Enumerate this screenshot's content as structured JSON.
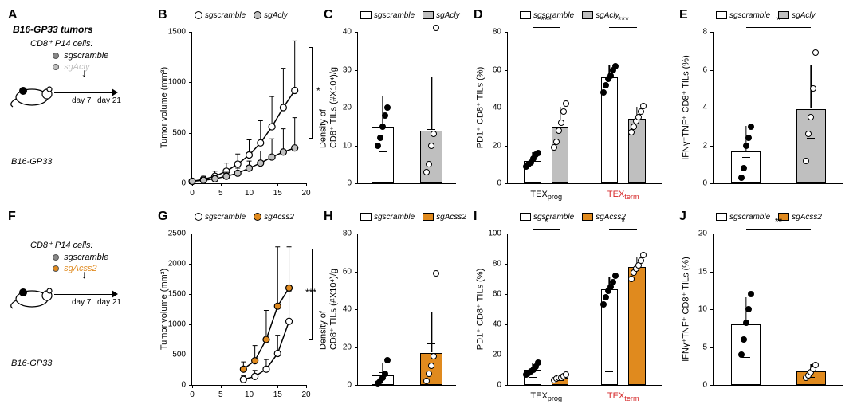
{
  "colors": {
    "black": "#000000",
    "white": "#ffffff",
    "grid": "#e0e0e0",
    "acly": "#bfbfbf",
    "acss2": "#e08a1e",
    "red": "#d62728"
  },
  "panelA": {
    "letter": "A",
    "title": "B16-GP33 tumors",
    "subheader": "CD8⁺ P14 cells:",
    "conds": [
      {
        "label": "sgscramble",
        "color": "#888888"
      },
      {
        "label": "sgAcly",
        "color": "#bfbfbf"
      }
    ],
    "model": "B16-GP33",
    "day7": "day 7",
    "day21": "day 21"
  },
  "panelB": {
    "letter": "B",
    "type": "line",
    "y_title": "Tumor volume (mm³)",
    "xlim": [
      0,
      20
    ],
    "xticks": [
      0,
      5,
      10,
      15,
      20
    ],
    "ylim": [
      0,
      1500
    ],
    "yticks": [
      0,
      500,
      1000,
      1500
    ],
    "legend": [
      {
        "label": "sgscramble",
        "marker_fill": "#ffffff"
      },
      {
        "label": "sgAcly",
        "marker_fill": "#bfbfbf"
      }
    ],
    "series": [
      {
        "name": "sgscramble",
        "color": "#000000",
        "fill": "#ffffff",
        "x": [
          0,
          2,
          4,
          6,
          8,
          10,
          12,
          14,
          16,
          18
        ],
        "y": [
          20,
          40,
          70,
          120,
          190,
          280,
          400,
          560,
          750,
          920
        ],
        "err": [
          0,
          30,
          50,
          80,
          100,
          150,
          220,
          300,
          390,
          490
        ]
      },
      {
        "name": "sgAcly",
        "color": "#000000",
        "fill": "#bfbfbf",
        "x": [
          0,
          2,
          4,
          6,
          8,
          10,
          12,
          14,
          16,
          18
        ],
        "y": [
          20,
          30,
          45,
          70,
          100,
          150,
          200,
          260,
          310,
          350
        ],
        "err": [
          0,
          20,
          30,
          40,
          50,
          70,
          120,
          180,
          230,
          300
        ]
      }
    ],
    "sig": "*"
  },
  "panelC": {
    "letter": "C",
    "type": "bar",
    "y_title": "Density of\nCD8⁺ TILs (#X10⁴)/g",
    "ylim": [
      0,
      40
    ],
    "yticks": [
      0,
      10,
      20,
      30,
      40
    ],
    "legend": [
      {
        "label": "sgscramble",
        "fill": "#ffffff"
      },
      {
        "label": "sgAcly",
        "fill": "#bfbfbf"
      }
    ],
    "bars": [
      {
        "group": "sgscramble",
        "fill": "#ffffff",
        "mean": 15,
        "err": 8,
        "points": [
          10,
          12,
          15,
          18,
          20
        ],
        "pt_fill": "#000000"
      },
      {
        "group": "sgAcly",
        "fill": "#bfbfbf",
        "mean": 14,
        "err": 14,
        "points": [
          3,
          5,
          10,
          13,
          41
        ],
        "pt_fill": "#ffffff"
      }
    ]
  },
  "panelD": {
    "letter": "D",
    "type": "grouped-bar",
    "y_title": "PD1⁺ CD8⁺ TILs (%)",
    "ylim": [
      0,
      80
    ],
    "yticks": [
      0,
      20,
      40,
      60,
      80
    ],
    "legend": [
      {
        "label": "sgscramble",
        "fill": "#ffffff"
      },
      {
        "label": "sgAcly",
        "fill": "#bfbfbf"
      }
    ],
    "groups": [
      {
        "name": "TEX",
        "sub": "prog",
        "color": "#000000",
        "bars": [
          {
            "fill": "#ffffff",
            "mean": 12,
            "err": 4,
            "points": [
              9,
              10,
              11,
              13,
              15,
              16
            ],
            "pt_fill": "#000000"
          },
          {
            "fill": "#bfbfbf",
            "mean": 30,
            "err": 10,
            "points": [
              19,
              22,
              28,
              32,
              38,
              42
            ],
            "pt_fill": "#ffffff"
          }
        ],
        "sig": "***"
      },
      {
        "name": "TEX",
        "sub": "term",
        "color": "#d62728",
        "bars": [
          {
            "fill": "#ffffff",
            "mean": 56,
            "err": 6,
            "points": [
              48,
              52,
              55,
              57,
              60,
              62
            ],
            "pt_fill": "#000000"
          },
          {
            "fill": "#bfbfbf",
            "mean": 34,
            "err": 6,
            "points": [
              27,
              30,
              33,
              35,
              38,
              41
            ],
            "pt_fill": "#ffffff"
          }
        ],
        "sig": "***"
      }
    ]
  },
  "panelE": {
    "letter": "E",
    "type": "bar",
    "y_title": "IFNγ⁺TNF⁺ CD8⁺ TILs (%)",
    "ylim": [
      0,
      8
    ],
    "yticks": [
      0,
      2,
      4,
      6,
      8
    ],
    "legend": [
      {
        "label": "sgscramble",
        "fill": "#ffffff"
      },
      {
        "label": "sgAcly",
        "fill": "#bfbfbf"
      }
    ],
    "bars": [
      {
        "fill": "#ffffff",
        "mean": 1.7,
        "err": 1.3,
        "points": [
          0.3,
          0.8,
          2.0,
          2.4,
          3.0
        ],
        "pt_fill": "#000000"
      },
      {
        "fill": "#bfbfbf",
        "mean": 3.9,
        "err": 2.3,
        "points": [
          1.2,
          2.6,
          3.5,
          5.0,
          6.9
        ],
        "pt_fill": "#ffffff"
      }
    ],
    "sig": "*"
  },
  "panelF": {
    "letter": "F",
    "subheader": "CD8⁺ P14 cells:",
    "conds": [
      {
        "label": "sgscramble",
        "color": "#888888"
      },
      {
        "label": "sgAcss2",
        "color": "#e08a1e"
      }
    ],
    "model": "B16-GP33",
    "day7": "day 7",
    "day21": "day 21"
  },
  "panelG": {
    "letter": "G",
    "type": "line",
    "y_title": "Tumor volume (mm³)",
    "xlim": [
      0,
      20
    ],
    "xticks": [
      0,
      5,
      10,
      15,
      20
    ],
    "ylim": [
      0,
      2500
    ],
    "yticks": [
      0,
      500,
      1000,
      1500,
      2000,
      2500
    ],
    "legend": [
      {
        "label": "sgscramble",
        "marker_fill": "#ffffff"
      },
      {
        "label": "sgAcss2",
        "marker_fill": "#e08a1e"
      }
    ],
    "series": [
      {
        "name": "sgscramble",
        "color": "#000000",
        "fill": "#ffffff",
        "x": [
          9,
          11,
          13,
          15,
          17
        ],
        "y": [
          90,
          140,
          260,
          520,
          1050
        ],
        "err": [
          60,
          100,
          160,
          300,
          500
        ]
      },
      {
        "name": "sgAcss2",
        "color": "#000000",
        "fill": "#e08a1e",
        "x": [
          9,
          11,
          13,
          15,
          17
        ],
        "y": [
          260,
          400,
          750,
          1300,
          1600
        ],
        "err": [
          120,
          250,
          480,
          980,
          680
        ]
      }
    ],
    "sig": "***"
  },
  "panelH": {
    "letter": "H",
    "type": "bar",
    "y_title": "Density of\nCD8⁺ TILs (#X10⁴)/g",
    "ylim": [
      0,
      80
    ],
    "yticks": [
      0,
      20,
      40,
      60,
      80
    ],
    "legend": [
      {
        "label": "sgscramble",
        "fill": "#ffffff"
      },
      {
        "label": "sgAcss2",
        "fill": "#e08a1e"
      }
    ],
    "bars": [
      {
        "fill": "#ffffff",
        "mean": 5,
        "err": 6,
        "points": [
          1,
          2,
          4,
          6,
          13
        ],
        "pt_fill": "#000000"
      },
      {
        "fill": "#e08a1e",
        "mean": 17,
        "err": 21,
        "points": [
          2,
          6,
          10,
          15,
          59
        ],
        "pt_fill": "#ffffff"
      }
    ]
  },
  "panelI": {
    "letter": "I",
    "type": "grouped-bar",
    "y_title": "PD1⁺ CD8⁺ TILs (%)",
    "ylim": [
      0,
      100
    ],
    "yticks": [
      0,
      20,
      40,
      60,
      80,
      100
    ],
    "legend": [
      {
        "label": "sgscramble",
        "fill": "#ffffff"
      },
      {
        "label": "sgAcss2",
        "fill": "#e08a1e"
      }
    ],
    "groups": [
      {
        "name": "TEX",
        "sub": "prog",
        "color": "#000000",
        "bars": [
          {
            "fill": "#ffffff",
            "mean": 10,
            "err": 4,
            "points": [
              7,
              8,
              9,
              10,
              12,
              15
            ],
            "pt_fill": "#000000"
          },
          {
            "fill": "#e08a1e",
            "mean": 5,
            "err": 2,
            "points": [
              3,
              4,
              5,
              5,
              6,
              7
            ],
            "pt_fill": "#ffffff"
          }
        ],
        "sig": "*"
      },
      {
        "name": "TEX",
        "sub": "term",
        "color": "#d62728",
        "bars": [
          {
            "fill": "#ffffff",
            "mean": 63,
            "err": 8,
            "points": [
              53,
              58,
              62,
              65,
              68,
              72
            ],
            "pt_fill": "#000000"
          },
          {
            "fill": "#e08a1e",
            "mean": 78,
            "err": 6,
            "points": [
              70,
              74,
              77,
              79,
              82,
              86
            ],
            "pt_fill": "#ffffff"
          }
        ],
        "sig": "*"
      }
    ]
  },
  "panelJ": {
    "letter": "J",
    "type": "bar",
    "y_title": "IFNγ⁺TNF⁺ CD8⁺ TILs (%)",
    "ylim": [
      0,
      20
    ],
    "yticks": [
      0,
      5,
      10,
      15,
      20
    ],
    "legend": [
      {
        "label": "sgscramble",
        "fill": "#ffffff"
      },
      {
        "label": "sgAcss2",
        "fill": "#e08a1e"
      }
    ],
    "bars": [
      {
        "fill": "#ffffff",
        "mean": 8,
        "err": 3.5,
        "points": [
          4.0,
          6.0,
          8.2,
          10.0,
          12.0
        ],
        "pt_fill": "#000000"
      },
      {
        "fill": "#e08a1e",
        "mean": 1.8,
        "err": 0.8,
        "points": [
          0.9,
          1.3,
          1.7,
          2.1,
          2.6
        ],
        "pt_fill": "#ffffff"
      }
    ],
    "sig": "**"
  }
}
